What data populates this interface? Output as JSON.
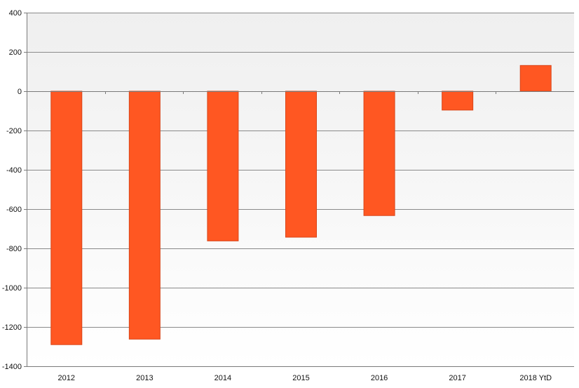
{
  "chart_data": {
    "type": "bar",
    "title": "",
    "xlabel": "",
    "ylabel": "",
    "categories": [
      "2012",
      "2013",
      "2014",
      "2015",
      "2016",
      "2017",
      "2018 YtD"
    ],
    "values": [
      -1290,
      -1262,
      -762,
      -743,
      -633,
      -96,
      131
    ],
    "ylim": [
      -1400,
      400
    ],
    "yticks": [
      400,
      200,
      0,
      -200,
      -400,
      -600,
      -800,
      -1000,
      -1200,
      -1400
    ],
    "ytick_labels": [
      "400",
      "200",
      "0",
      "-200",
      "-400",
      "-600",
      "-800",
      "-1000",
      "-1200",
      "-1400"
    ],
    "grid": true,
    "legend": "none",
    "colors": {
      "bar": "#ff5722",
      "bar_edge": "#d9461a",
      "grid": "#8a8a8a",
      "background_top": "#efefef",
      "background_bottom": "#ffffff"
    }
  }
}
